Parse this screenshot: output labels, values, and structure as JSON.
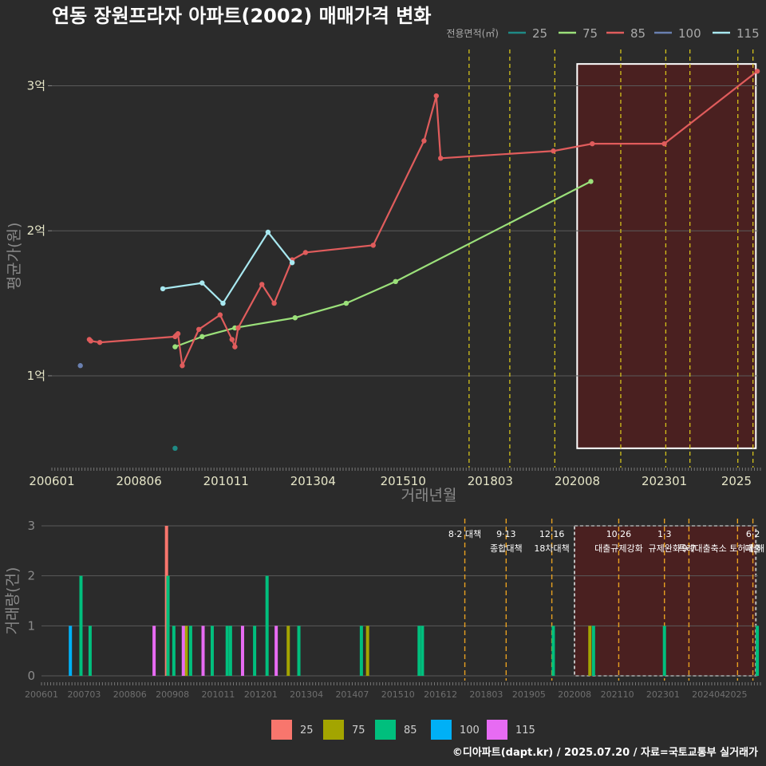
{
  "title": "연동 장원프라자 아파트(2002) 매매가격 변화",
  "caption": "©디아파트(dapt.kr) / 2025.07.20 / 자료=국토교통부 실거래가",
  "colors": {
    "background": "#2b2b2b",
    "grid": "#5a5a5a",
    "policy_line": "#d4c21a",
    "policy_line_bottom": "#e8a020",
    "highlight_fill": "#4a2020",
    "highlight_border": "#ffffff"
  },
  "chart_data": [
    {
      "type": "line",
      "panel": "price",
      "xlabel": "거래년월",
      "ylabel": "평균가(원)",
      "x_ticks": [
        "200601",
        "200806",
        "201011",
        "201304",
        "201510",
        "201803",
        "202008",
        "202301",
        "2025"
      ],
      "y_ticks": [
        "1억",
        "2억",
        "3억"
      ],
      "ylim": [
        0.4,
        3.25
      ],
      "xlim": [
        2006.0,
        2025.6
      ],
      "legend_title": "전용면적(㎡)",
      "legend_position": "top-right",
      "series": [
        {
          "name": "25",
          "color": "#1f8a85",
          "x": [
            2009.42
          ],
          "y": [
            0.5
          ]
        },
        {
          "name": "75",
          "color": "#9be07a",
          "x": [
            2009.42,
            2010.17,
            2011.08,
            2012.75,
            2014.17,
            2015.54,
            2020.96
          ],
          "y": [
            1.2,
            1.27,
            1.33,
            1.4,
            1.5,
            1.65,
            2.34
          ]
        },
        {
          "name": "85",
          "color": "#e05c5c",
          "x": [
            2007.04,
            2007.08,
            2007.33,
            2009.42,
            2009.46,
            2009.5,
            2009.62,
            2010.08,
            2010.67,
            2011.0,
            2011.08,
            2011.17,
            2011.83,
            2012.17,
            2012.67,
            2013.04,
            2014.92,
            2016.33,
            2016.67,
            2016.79,
            2019.92,
            2021.0,
            2023.0,
            2025.58
          ],
          "y": [
            1.25,
            1.24,
            1.23,
            1.27,
            1.28,
            1.29,
            1.07,
            1.32,
            1.42,
            1.25,
            1.2,
            1.33,
            1.63,
            1.5,
            1.8,
            1.85,
            1.9,
            2.62,
            2.93,
            2.5,
            2.55,
            2.6,
            2.6,
            3.1
          ]
        },
        {
          "name": "100",
          "color": "#6a80b0",
          "x": [
            2006.79
          ],
          "y": [
            1.07
          ]
        },
        {
          "name": "115",
          "color": "#a8e8f0",
          "x": [
            2009.08,
            2010.17,
            2010.75,
            2012.0,
            2012.67
          ],
          "y": [
            1.6,
            1.64,
            1.5,
            1.99,
            1.78
          ]
        }
      ],
      "policy_lines_x": [
        2017.58,
        2018.71,
        2019.96,
        2021.79,
        2023.04,
        2023.71,
        2025.04,
        2025.46
      ],
      "highlight_range_x": [
        2020.58,
        2025.54
      ],
      "highlight_range_y": [
        0.5,
        3.15
      ]
    },
    {
      "type": "bar",
      "panel": "volume",
      "ylabel": "거래량(건)",
      "x_ticks": [
        "200601",
        "200703",
        "200806",
        "200908",
        "201011",
        "201201",
        "201304",
        "201407",
        "201510",
        "201612",
        "201803",
        "201905",
        "202008",
        "202110",
        "202301",
        "202404",
        "2025"
      ],
      "y_ticks": [
        "0",
        "1",
        "2",
        "3"
      ],
      "ylim": [
        0,
        3
      ],
      "xlim": [
        2006.0,
        2025.6
      ],
      "series": [
        {
          "name": "25",
          "color": "#f8766d",
          "x": [
            2009.42
          ],
          "y": [
            3
          ]
        },
        {
          "name": "75",
          "color": "#a3a500",
          "x": [
            2009.46,
            2009.96,
            2012.75,
            2014.92,
            2021.0
          ],
          "y": [
            2,
            1,
            1,
            1,
            1
          ]
        },
        {
          "name": "85",
          "color": "#00bf7d",
          "x": [
            2007.08,
            2007.33,
            2009.46,
            2009.62,
            2010.08,
            2010.67,
            2011.08,
            2011.17,
            2011.83,
            2012.17,
            2013.04,
            2014.75,
            2016.33,
            2016.42,
            2020.0,
            2021.1,
            2023.04,
            2025.58
          ],
          "y": [
            2,
            1,
            2,
            1,
            1,
            1,
            1,
            1,
            1,
            2,
            1,
            1,
            1,
            1,
            1,
            1,
            1,
            1
          ]
        },
        {
          "name": "100",
          "color": "#00b0f6",
          "x": [
            2006.79
          ],
          "y": [
            1
          ]
        },
        {
          "name": "115",
          "color": "#e76bf3",
          "x": [
            2009.08,
            2009.88,
            2010.42,
            2011.5,
            2012.42
          ],
          "y": [
            1,
            1,
            1,
            1,
            1
          ]
        }
      ],
      "policy_lines_x": [
        2017.58,
        2018.71,
        2019.96,
        2021.79,
        2023.04,
        2023.71,
        2025.04,
        2025.46
      ],
      "highlight_range_x": [
        2020.58,
        2025.54
      ],
      "annotations": [
        {
          "x": 2017.58,
          "line1": "8·2 대책",
          "line2": ""
        },
        {
          "x": 2018.71,
          "line1": "9·13",
          "line2": "종합대책"
        },
        {
          "x": 2019.96,
          "line1": "12·16",
          "line2": "18차대책"
        },
        {
          "x": 2021.79,
          "line1": "10·26",
          "line2": "대출규제강화"
        },
        {
          "x": 2023.04,
          "line1": "1·3",
          "line2": "규제완화"
        },
        {
          "x": 2023.71,
          "line1": "",
          "line2": "9·7"
        },
        {
          "x": 2024.6,
          "line1": "",
          "line2": "특례대출축소 토허제 해"
        },
        {
          "x": 2025.46,
          "line1": "6·2",
          "line2": "대출"
        }
      ],
      "legend_position": "bottom"
    }
  ]
}
